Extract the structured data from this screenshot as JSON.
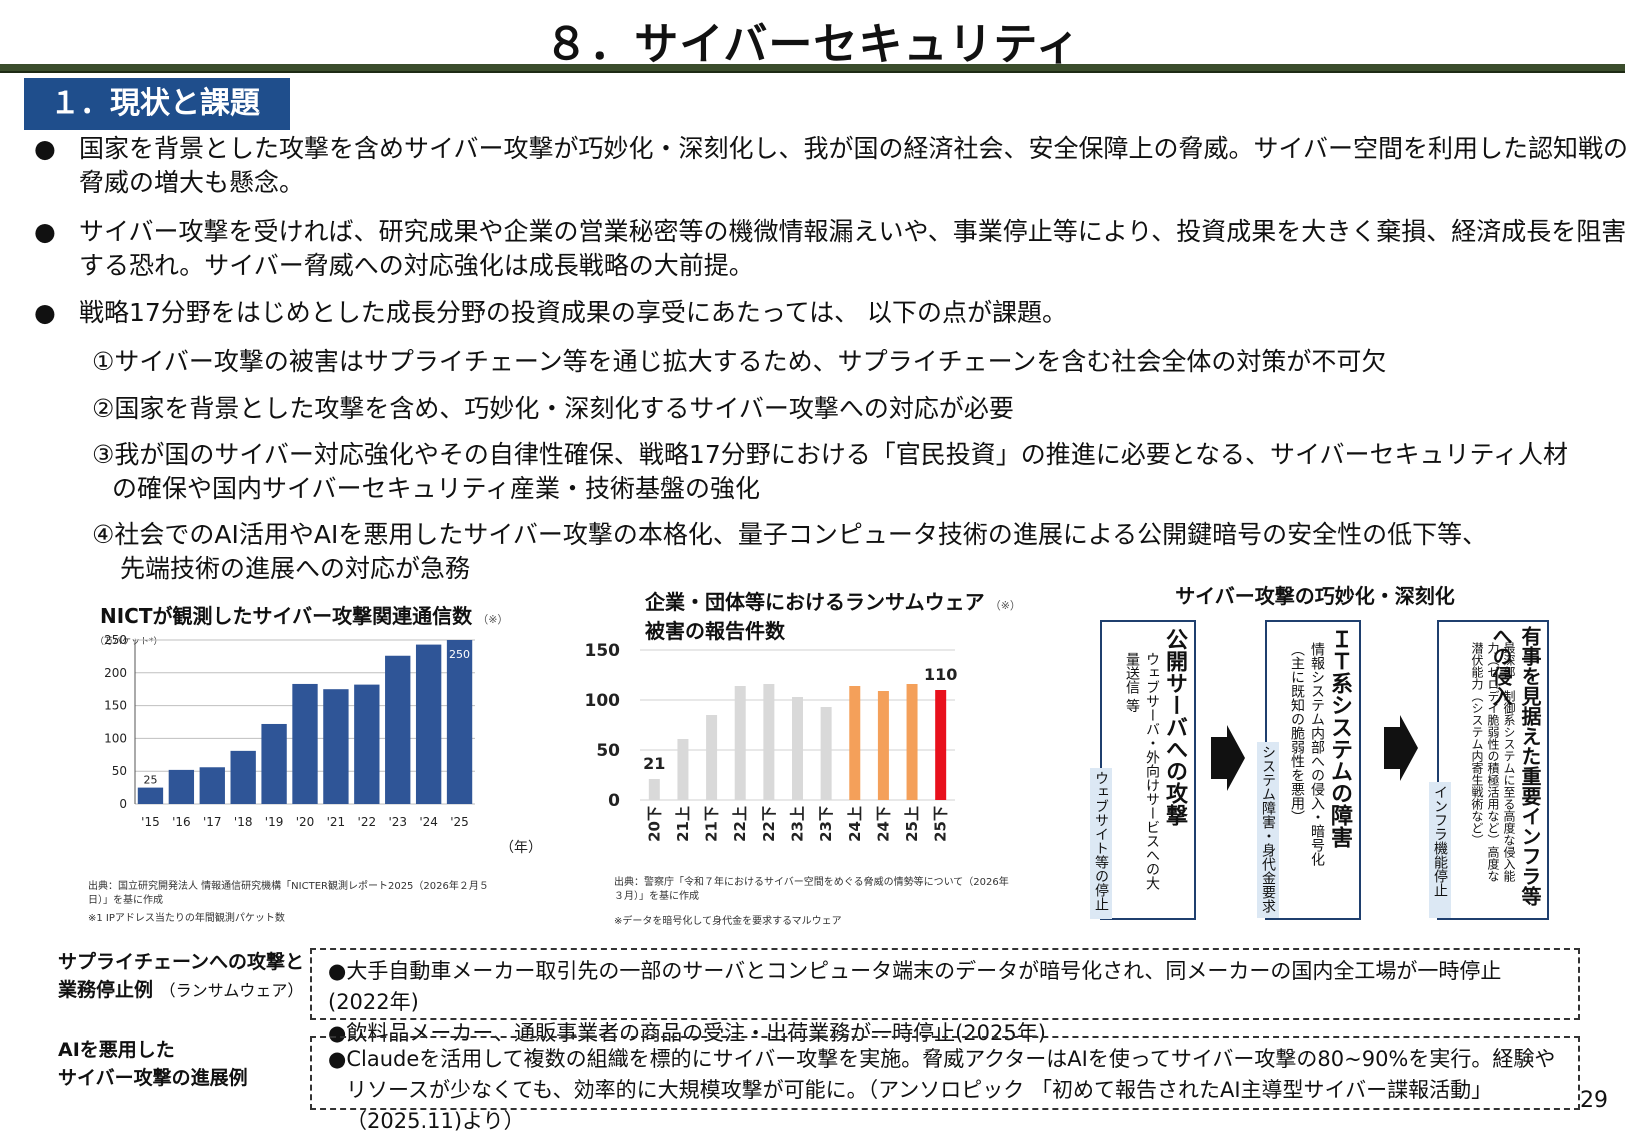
{
  "title": "８．サイバーセキュリティ",
  "section": "１．現状と課題",
  "bullets": [
    "国家を背景とした攻撃を含めサイバー攻撃が巧妙化・深刻化し、我が国の経済社会、安全保障上の脅威。サイバー空間を利用した認知戦の脅威の増大も懸念。",
    "サイバー攻撃を受ければ、研究成果や企業の営業秘密等の機微情報漏えいや、事業停止等により、投資成果を大きく棄損、経済成長を阻害する恐れ。サイバー脅威への対応強化は成長戦略の大前提。",
    "戦略17分野をはじめとした成長分野の投資成果の享受にあたっては、 以下の点が課題。"
  ],
  "items": [
    {
      "line1": "①サイバー攻撃の被害はサプライチェーン等を通じ拡大するため、サプライチェーンを含む社会全体の対策が不可欠",
      "line2": ""
    },
    {
      "line1": "②国家を背景とした攻撃を含め、巧妙化・深刻化するサイバー攻撃への対応が必要",
      "line2": ""
    },
    {
      "line1": "③我が国のサイバー対応強化やその自律性確保、戦略17分野における「官民投資」の推進に必要となる、サイバーセキュリティ人材",
      "line2": "の確保や国内サイバーセキュリティ産業・技術基盤の強化"
    },
    {
      "line1": "④社会でのAI活用やAIを悪用したサイバー攻撃の本格化、量子コンピュータ技術の進展による公開鍵暗号の安全性の低下等、",
      "line2": "先端技術の進展への対応が急務"
    }
  ],
  "chart_data": [
    {
      "type": "bar",
      "title": "NICTが観測したサイバー攻撃関連通信数",
      "title_note": "（※）",
      "ylabel": "（万パケット*）",
      "xlabel": "（年）",
      "categories": [
        "'15",
        "'16",
        "'17",
        "'18",
        "'19",
        "'20",
        "'21",
        "'22",
        "'23",
        "'24",
        "'25"
      ],
      "values": [
        25,
        52,
        56,
        81,
        122,
        183,
        175,
        182,
        226,
        243,
        250
      ],
      "data_labels": {
        "0": "25",
        "10": "250"
      },
      "ylim": [
        0,
        250
      ],
      "yticks": [
        "0",
        "50",
        "100",
        "150",
        "200",
        "250"
      ],
      "bar_color": "#2f5597",
      "grid": true,
      "source": "出典：国立研究開発法人 情報通信研究機構「NICTER観測レポート2025（2026年２月５日）」を基に作成",
      "footnote": "※1 IPアドレス当たりの年間観測パケット数"
    },
    {
      "type": "bar",
      "title_line1": "企業・団体等におけるランサムウェア",
      "title_note": "（※）",
      "title_line2": "被害の報告件数",
      "categories": [
        "20下",
        "21上",
        "21下",
        "22上",
        "22下",
        "23上",
        "23下",
        "24上",
        "24下",
        "25上",
        "25下"
      ],
      "values": [
        21,
        61,
        85,
        114,
        116,
        103,
        93,
        114,
        109,
        116,
        110
      ],
      "data_labels": {
        "0": "21",
        "10": "110"
      },
      "ylim": [
        0,
        150
      ],
      "yticks": [
        "0",
        "50",
        "100",
        "150"
      ],
      "bar_colors": [
        "#d9d9d9",
        "#d9d9d9",
        "#d9d9d9",
        "#d9d9d9",
        "#d9d9d9",
        "#d9d9d9",
        "#d9d9d9",
        "#f4a05a",
        "#f4a05a",
        "#f4a05a",
        "#e8101c"
      ],
      "grid": true,
      "source": "出典：警察庁「令和７年におけるサイバー空間をめぐる脅威の情勢等について（2026年３月）」を基に作成",
      "footnote": "※データを暗号化して身代金を要求するマルウェア"
    }
  ],
  "flow": {
    "title": "サイバー攻撃の巧妙化・深刻化",
    "boxes": [
      {
        "head": "公開サーバへの攻撃",
        "sub": "ウェブサーバ・外向けサービスへの大量送信 等",
        "tag": "ウェブサイト等の停止"
      },
      {
        "head": "ＩＴ系システムの障害",
        "sub": "情報システム内部への侵入・暗号化（主に既知の脆弱性を悪用）",
        "tag": "システム障害・身代金要求"
      },
      {
        "head": "有事を見据えた重要インフラ等への侵入",
        "sub": "最深部・制御系システムに至る高度な侵入能力（ゼロデイ脆弱性の積極活用など）高度な潜伏能力（システム内寄生戦術など）",
        "tag": "インフラ機能停止"
      }
    ]
  },
  "examples": [
    {
      "label1": "サプライチェーンへの攻撃と",
      "label2": "業務停止例",
      "label_note": "（ランサムウェア）",
      "lines": [
        "●大手自動車メーカー取引先の一部のサーバとコンピュータ端末のデータが暗号化され、同メーカーの国内全工場が一時停止(2022年)",
        "●飲料品メーカー、通販事業者の商品の受注・出荷業務が一時停止(2025年)"
      ]
    },
    {
      "label1": "AIを悪用した",
      "label2": "サイバー攻撃の進展例",
      "label_note": "",
      "lines": [
        "●Claudeを活用して複数の組織を標的にサイバー攻撃を実施。脅威アクターはAIを使ってサイバー攻撃の80~90%を実行。経験や",
        "リソースが少なくても、効率的に大規模攻撃が可能に。（アンソロピック 「初めて報告されたAI主導型サイバー諜報活動」（2025.11)より）"
      ]
    }
  ],
  "page_number": "29"
}
